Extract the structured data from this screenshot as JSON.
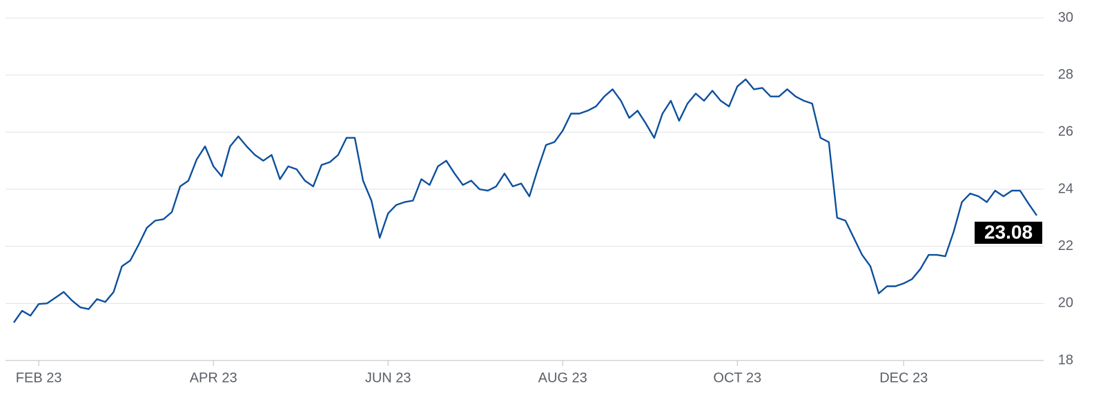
{
  "chart_data": {
    "type": "line",
    "categories": [
      null,
      null,
      null,
      "FEB 23",
      null,
      null,
      null,
      null,
      null,
      null,
      null,
      null,
      null,
      null,
      null,
      null,
      null,
      null,
      null,
      null,
      null,
      null,
      null,
      null,
      "APR 23",
      null,
      null,
      null,
      null,
      null,
      null,
      null,
      null,
      null,
      null,
      null,
      null,
      null,
      null,
      null,
      null,
      null,
      null,
      null,
      null,
      "JUN 23",
      null,
      null,
      null,
      null,
      null,
      null,
      null,
      null,
      null,
      null,
      null,
      null,
      null,
      null,
      null,
      null,
      null,
      null,
      null,
      null,
      "AUG 23",
      null,
      null,
      null,
      null,
      null,
      null,
      null,
      null,
      null,
      null,
      null,
      null,
      null,
      null,
      null,
      null,
      null,
      null,
      null,
      null,
      "OCT 23",
      null,
      null,
      null,
      null,
      null,
      null,
      null,
      null,
      null,
      null,
      null,
      null,
      null,
      null,
      null,
      null,
      null,
      null,
      null,
      "DEC 23",
      null,
      null,
      null,
      null,
      null,
      null,
      null,
      null,
      null,
      null,
      null,
      null,
      null,
      null,
      null,
      null
    ],
    "series": [
      {
        "color": "#0d4f9e",
        "values": [
          19.33,
          19.74,
          19.57,
          19.98,
          20.0,
          20.2,
          20.4,
          20.1,
          19.86,
          19.8,
          20.15,
          20.05,
          20.4,
          21.3,
          21.5,
          22.05,
          22.65,
          22.9,
          22.95,
          23.2,
          24.1,
          24.3,
          25.05,
          25.5,
          24.8,
          24.45,
          25.5,
          25.85,
          25.5,
          25.2,
          25.0,
          25.2,
          24.35,
          24.8,
          24.7,
          24.3,
          24.1,
          24.85,
          24.95,
          25.2,
          25.8,
          25.8,
          24.3,
          23.6,
          22.3,
          23.15,
          23.45,
          23.55,
          23.6,
          24.35,
          24.15,
          24.8,
          25.0,
          24.55,
          24.15,
          24.3,
          24.0,
          23.95,
          24.1,
          24.55,
          24.1,
          24.2,
          23.75,
          24.7,
          25.55,
          25.65,
          26.05,
          26.65,
          26.65,
          26.75,
          26.9,
          27.25,
          27.5,
          27.1,
          26.5,
          26.75,
          26.3,
          25.8,
          26.65,
          27.1,
          26.4,
          27.0,
          27.35,
          27.1,
          27.45,
          27.1,
          26.9,
          27.6,
          27.85,
          27.5,
          27.55,
          27.25,
          27.25,
          27.5,
          27.25,
          27.1,
          27.0,
          25.8,
          25.65,
          23.0,
          22.9,
          22.3,
          21.7,
          21.3,
          20.35,
          20.6,
          20.6,
          20.7,
          20.85,
          21.2,
          21.7,
          21.7,
          21.65,
          22.5,
          23.55,
          23.85,
          23.75,
          23.55,
          23.95,
          23.75,
          23.95,
          23.95,
          23.5,
          23.08
        ]
      }
    ],
    "ylim": [
      18,
      30
    ],
    "yticks": [
      18,
      20,
      22,
      24,
      26,
      28,
      30
    ],
    "grid": true
  }
}
